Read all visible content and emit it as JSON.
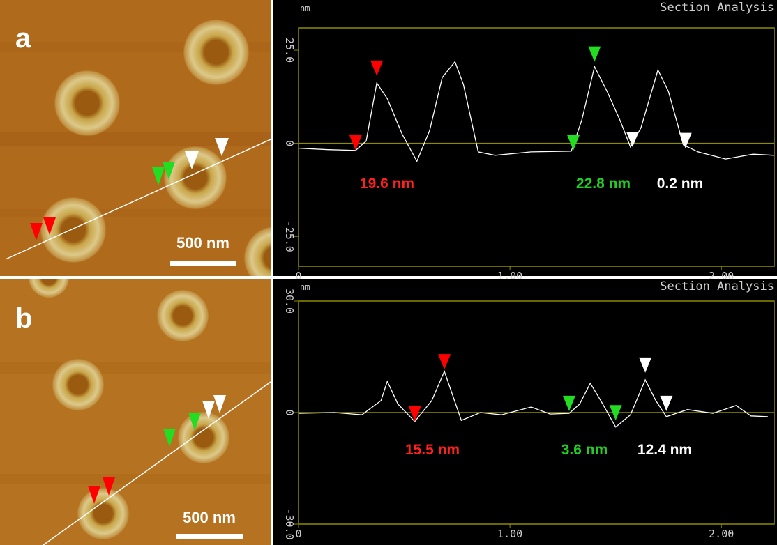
{
  "panels": [
    {
      "label": "a",
      "scale_bar": "500 nm"
    },
    {
      "label": "b",
      "scale_bar": "500 nm"
    }
  ],
  "chart_data": [
    {
      "type": "line",
      "title": "Section Analysis",
      "ylabel": "nm",
      "color": "#ffffff",
      "axis_color": "#8c8c00",
      "zero_line": true,
      "x": [
        0.0,
        0.14,
        0.27,
        0.32,
        0.37,
        0.42,
        0.49,
        0.56,
        0.62,
        0.68,
        0.74,
        0.78,
        0.85,
        0.93,
        1.1,
        1.29,
        1.34,
        1.4,
        1.46,
        1.52,
        1.57,
        1.62,
        1.7,
        1.75,
        1.82,
        1.89,
        2.02,
        2.15,
        2.25
      ],
      "values": [
        -1.3,
        -1.7,
        -1.9,
        0.6,
        16.2,
        12.0,
        2.5,
        -4.8,
        3.4,
        17.7,
        21.9,
        15.8,
        -2.3,
        -3.2,
        -2.3,
        -2.1,
        6.3,
        20.6,
        13.9,
        6.3,
        -1.0,
        4.2,
        19.7,
        13.9,
        -0.4,
        -2.3,
        -4.2,
        -2.9,
        -3.2
      ],
      "xlim": [
        0,
        2.25
      ],
      "ylim": [
        -33,
        31
      ],
      "xticks": [
        0,
        {
          "value": 1,
          "label": "1.00"
        },
        {
          "value": 2,
          "label": "2.00"
        }
      ],
      "yticks": [
        {
          "value": -25,
          "label": "-25.0"
        },
        0,
        {
          "value": 25,
          "label": "25.0"
        }
      ],
      "markers": [
        {
          "x": 0.27,
          "y": -1.9,
          "color": "#ff0000"
        },
        {
          "x": 0.37,
          "y": 18.1,
          "color": "#ff0000"
        },
        {
          "x": 1.3,
          "y": -1.9,
          "color": "#22dd22"
        },
        {
          "x": 1.4,
          "y": 21.9,
          "color": "#22dd22"
        },
        {
          "x": 1.58,
          "y": -1.0,
          "color": "#ffffff"
        },
        {
          "x": 1.83,
          "y": -1.3,
          "color": "#ffffff"
        }
      ],
      "annotations": [
        {
          "text": "19.6 nm",
          "color": "#ff2020"
        },
        {
          "text": "22.8 nm",
          "color": "#22cc22"
        },
        {
          "text": "0.2 nm",
          "color": "#ffffff"
        }
      ]
    },
    {
      "type": "line",
      "title": "Section Analysis",
      "ylabel": "nm",
      "color": "#ffffff",
      "axis_color": "#8c8c00",
      "zero_line": true,
      "x": [
        0.0,
        0.17,
        0.3,
        0.39,
        0.42,
        0.47,
        0.55,
        0.63,
        0.69,
        0.77,
        0.86,
        0.96,
        1.1,
        1.19,
        1.28,
        1.33,
        1.38,
        1.43,
        1.5,
        1.57,
        1.64,
        1.69,
        1.74,
        1.84,
        1.96,
        2.07,
        2.14,
        2.22
      ],
      "values": [
        -0.2,
        0,
        -0.6,
        3.2,
        8.4,
        2.3,
        -2.4,
        3.2,
        11.1,
        -2.1,
        0,
        -0.6,
        1.5,
        -0.4,
        -0.2,
        2.3,
        7.9,
        3.2,
        -3.9,
        -0.6,
        8.8,
        3.2,
        -1.1,
        0.8,
        -0.2,
        1.9,
        -0.9,
        -1.1
      ],
      "xlim": [
        0,
        2.25
      ],
      "ylim": [
        -30,
        30
      ],
      "xticks": [
        0,
        {
          "value": 1,
          "label": "1.00"
        },
        {
          "value": 2,
          "label": "2.00"
        }
      ],
      "yticks": [
        {
          "value": -30,
          "label": "-30.0"
        },
        0,
        {
          "value": 30,
          "label": "30.0"
        }
      ],
      "markers": [
        {
          "x": 0.55,
          "y": -2.4,
          "color": "#ff0000"
        },
        {
          "x": 0.69,
          "y": 11.6,
          "color": "#ff0000"
        },
        {
          "x": 1.28,
          "y": 0.4,
          "color": "#22dd22"
        },
        {
          "x": 1.5,
          "y": -2.1,
          "color": "#22dd22"
        },
        {
          "x": 1.64,
          "y": 10.7,
          "color": "#ffffff"
        },
        {
          "x": 1.74,
          "y": 0.4,
          "color": "#ffffff"
        }
      ],
      "annotations": [
        {
          "text": "15.5 nm",
          "color": "#ff2020"
        },
        {
          "text": "3.6 nm",
          "color": "#22cc22"
        },
        {
          "text": "12.4 nm",
          "color": "#ffffff"
        }
      ]
    }
  ]
}
